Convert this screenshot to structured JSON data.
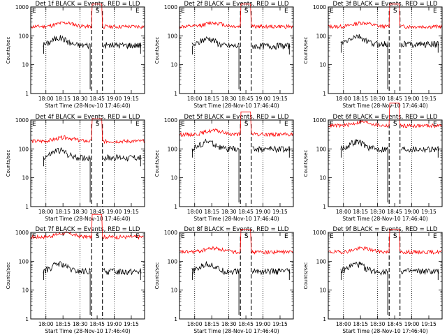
{
  "chart_data": {
    "type": "line",
    "ylabel": "Counts/sec",
    "xlabel": "Start Time (28-Nov-10 17:46:40)",
    "yscale": "log",
    "ylim": [
      1,
      1000
    ],
    "y_ticks": [
      "1",
      "10",
      "100",
      "1000"
    ],
    "x_ticks": [
      "18:00",
      "18:15",
      "18:30",
      "18:45",
      "19:00",
      "19:15"
    ],
    "x_tick_minutes": [
      13.33,
      28.33,
      43.33,
      58.33,
      73.33,
      88.33
    ],
    "xlim_minutes": [
      0,
      100
    ],
    "grid": "dotted vertical lines at 18:00, 18:30, 19:00",
    "markers": {
      "E": "E",
      "S": "S"
    },
    "series_colors": {
      "events": "#000000",
      "lld": "#ff0000"
    },
    "panels": [
      {
        "title": "Det 1f BLACK = Events, RED = LLD",
        "events_level": 48,
        "lld_level": 210
      },
      {
        "title": "Det 2f BLACK = Events, RED = LLD",
        "events_level": 45,
        "lld_level": 210
      },
      {
        "title": "Det 3f BLACK = Events, RED = LLD",
        "events_level": 52,
        "lld_level": 210
      },
      {
        "title": "Det 4f BLACK = Events, RED = LLD",
        "events_level": 50,
        "lld_level": 185
      },
      {
        "title": "Det 5f BLACK = Events, RED = LLD",
        "events_level": 100,
        "lld_level": 320
      },
      {
        "title": "Det 6f BLACK = Events, RED = LLD",
        "events_level": 100,
        "lld_level": 640
      },
      {
        "title": "Det 7f BLACK = Events, RED = LLD",
        "events_level": 45,
        "lld_level": 700
      },
      {
        "title": "Det 8f BLACK = Events, RED = LLD",
        "events_level": 45,
        "lld_level": 210
      },
      {
        "title": "Det 9f BLACK = Events, RED = LLD",
        "events_level": 45,
        "lld_level": 210
      }
    ]
  }
}
